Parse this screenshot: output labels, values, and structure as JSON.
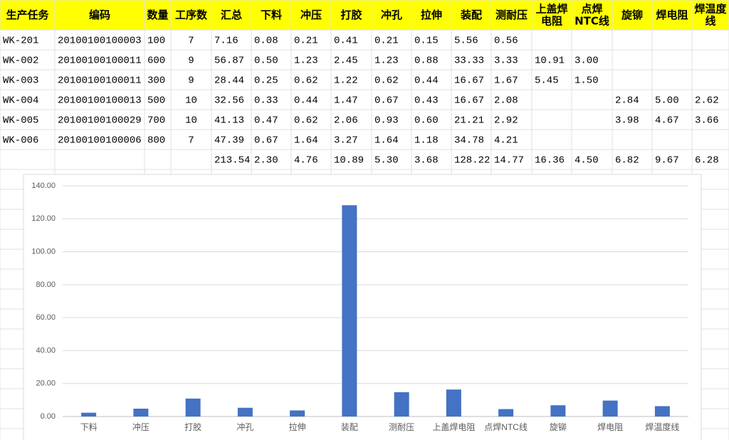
{
  "table": {
    "header": [
      "生产任务",
      "编码",
      "数量",
      "工序数",
      "汇总",
      "下料",
      "冲压",
      "打胶",
      "冲孔",
      "拉伸",
      "装配",
      "测耐压",
      "上盖焊\n电阻",
      "点焊\nNTC线",
      "旋铆",
      "焊电阻",
      "焊温度\n线"
    ],
    "rows": [
      [
        "WK-201",
        "20100100100003",
        "100",
        "7",
        "7.16",
        "0.08",
        "0.21",
        "0.41",
        "0.21",
        "0.15",
        "5.56",
        "0.56",
        null,
        null,
        null,
        null,
        null
      ],
      [
        "WK-002",
        "20100100100011",
        "600",
        "9",
        "56.87",
        "0.50",
        "1.23",
        "2.45",
        "1.23",
        "0.88",
        "33.33",
        "3.33",
        "10.91",
        "3.00",
        null,
        null,
        null
      ],
      [
        "WK-003",
        "20100100100011",
        "300",
        "9",
        "28.44",
        "0.25",
        "0.62",
        "1.22",
        "0.62",
        "0.44",
        "16.67",
        "1.67",
        "5.45",
        "1.50",
        null,
        null,
        null
      ],
      [
        "WK-004",
        "20100100100013",
        "500",
        "10",
        "32.56",
        "0.33",
        "0.44",
        "1.47",
        "0.67",
        "0.43",
        "16.67",
        "2.08",
        null,
        null,
        "2.84",
        "5.00",
        "2.62"
      ],
      [
        "WK-005",
        "20100100100029",
        "700",
        "10",
        "41.13",
        "0.47",
        "0.62",
        "2.06",
        "0.93",
        "0.60",
        "21.21",
        "2.92",
        null,
        null,
        "3.98",
        "4.67",
        "3.66"
      ],
      [
        "WK-006",
        "20100100100006",
        "800",
        "7",
        "47.39",
        "0.67",
        "1.64",
        "3.27",
        "1.64",
        "1.18",
        "34.78",
        "4.21",
        null,
        null,
        null,
        null,
        null
      ],
      [
        null,
        null,
        null,
        null,
        "213.54",
        "2.30",
        "4.76",
        "10.89",
        "5.30",
        "3.68",
        "128.22",
        "14.77",
        "16.36",
        "4.50",
        "6.82",
        "9.67",
        "6.28"
      ]
    ]
  },
  "chart_data": {
    "type": "bar",
    "categories": [
      "下料",
      "冲压",
      "打胶",
      "冲孔",
      "拉伸",
      "装配",
      "测耐压",
      "上盖焊电阻",
      "点焊NTC线",
      "旋铆",
      "焊电阻",
      "焊温度线"
    ],
    "values": [
      2.3,
      4.76,
      10.89,
      5.3,
      3.68,
      128.22,
      14.77,
      16.36,
      4.5,
      6.82,
      9.67,
      6.28
    ],
    "color": "#4472c4",
    "ylim": [
      0,
      140
    ],
    "yticks": [
      {
        "value": 0,
        "label": "0.00"
      },
      {
        "value": 20,
        "label": "20.00"
      },
      {
        "value": 40,
        "label": "40.00"
      },
      {
        "value": 60,
        "label": "60.00"
      },
      {
        "value": 80,
        "label": "80.00"
      },
      {
        "value": 100,
        "label": "100.00"
      },
      {
        "value": 120,
        "label": "120.00"
      },
      {
        "value": 140,
        "label": "140.00"
      }
    ],
    "grid": true
  }
}
